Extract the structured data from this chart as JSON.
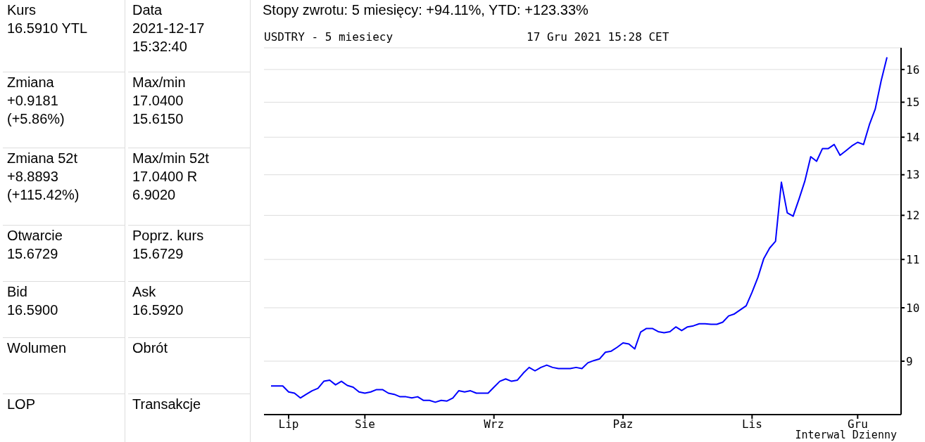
{
  "chart_data": [
    {
      "type": "other",
      "annotations": [
        "Kurs\n16.5910 YTL",
        "Data\n2021-12-17\n15:32:40",
        "Zmiana\n+0.9181\n(+5.86%)",
        "Max/min\n17.0400\n15.6150",
        "Zmiana 52t\n+8.8893\n(+115.42%)",
        "Max/min 52t\n17.0400 R\n6.9020",
        "Otwarcie\n15.6729",
        "Poprz. kurs\n15.6729",
        "Bid\n16.5900",
        "Ask\n16.5920",
        "Wolumen",
        "Obrót",
        "LOP",
        "Transakcje"
      ]
    },
    {
      "type": "line",
      "title": "Stopy zwrotu: 5 miesięcy: +94.11%, YTD: +123.33%",
      "subtitle": "USDTRY - 5 miesiecy",
      "annotations": [
        "17 Gru 2021 15:28 CET",
        "Interwal Dzienny"
      ],
      "categories": [
        null,
        null,
        null,
        "Lip",
        null,
        null,
        null,
        null,
        null,
        null,
        null,
        null,
        null,
        null,
        null,
        null,
        "Sie",
        null,
        null,
        null,
        null,
        null,
        null,
        null,
        null,
        null,
        null,
        null,
        null,
        null,
        null,
        null,
        null,
        null,
        null,
        null,
        null,
        null,
        "Wrz",
        null,
        null,
        null,
        null,
        null,
        null,
        null,
        null,
        null,
        null,
        null,
        null,
        null,
        null,
        null,
        null,
        null,
        null,
        null,
        null,
        null,
        "Paz",
        null,
        null,
        null,
        null,
        null,
        null,
        null,
        null,
        null,
        null,
        null,
        null,
        null,
        null,
        null,
        null,
        null,
        null,
        null,
        null,
        null,
        "Lis",
        null,
        null,
        null,
        null,
        null,
        null,
        null,
        null,
        null,
        null,
        null,
        null,
        null,
        null,
        null,
        null,
        null,
        "Gru",
        null,
        null,
        null,
        null,
        null
      ],
      "series": [
        {
          "color": "#0000ff",
          "values": [
            8.57,
            8.57,
            8.57,
            8.47,
            8.45,
            8.37,
            8.43,
            8.49,
            8.53,
            8.65,
            8.67,
            8.59,
            8.65,
            8.58,
            8.55,
            8.47,
            8.45,
            8.47,
            8.51,
            8.51,
            8.45,
            8.43,
            8.39,
            8.39,
            8.37,
            8.39,
            8.33,
            8.33,
            8.3,
            8.33,
            8.32,
            8.37,
            8.49,
            8.47,
            8.49,
            8.45,
            8.45,
            8.45,
            8.55,
            8.65,
            8.69,
            8.65,
            8.67,
            8.79,
            8.89,
            8.83,
            8.89,
            8.93,
            8.89,
            8.87,
            8.87,
            8.87,
            8.89,
            8.87,
            8.97,
            9.01,
            9.04,
            9.16,
            9.18,
            9.25,
            9.33,
            9.31,
            9.22,
            9.53,
            9.6,
            9.6,
            9.54,
            9.52,
            9.54,
            9.63,
            9.56,
            9.63,
            9.65,
            9.69,
            9.69,
            9.68,
            9.68,
            9.72,
            9.84,
            9.88,
            9.96,
            10.04,
            10.31,
            10.62,
            11.02,
            11.25,
            11.4,
            12.81,
            12.06,
            11.98,
            12.39,
            12.84,
            13.47,
            13.35,
            13.69,
            13.69,
            13.8,
            13.51,
            13.63,
            13.76,
            13.86,
            13.8,
            14.35,
            14.8,
            15.64,
            16.39
          ]
        }
      ],
      "ylim": [
        8.1,
        16.7
      ],
      "yticks": [
        9,
        10,
        11,
        12,
        13,
        14,
        15,
        16
      ],
      "log": "y",
      "grid": "y",
      "marker": "none",
      "line_style": "solid"
    }
  ]
}
